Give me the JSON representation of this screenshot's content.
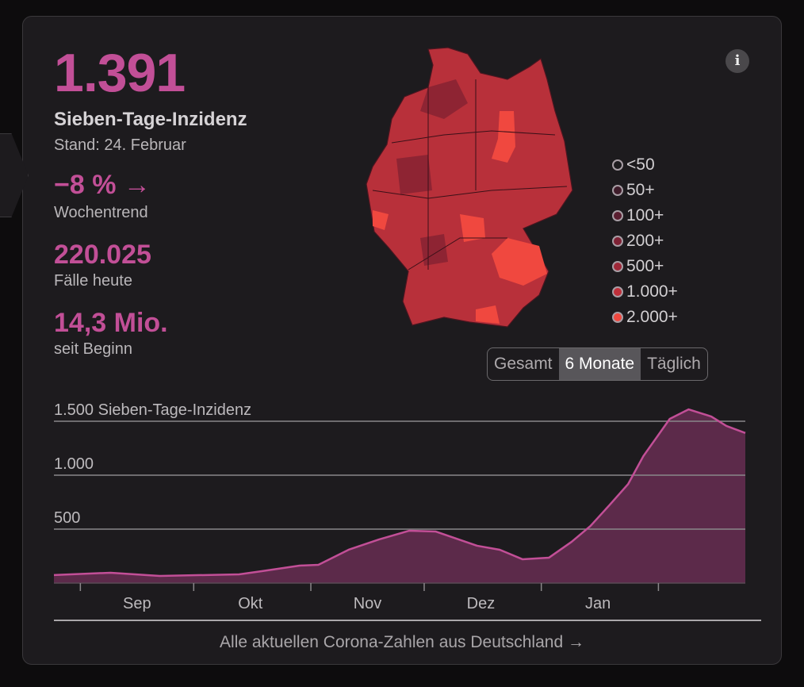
{
  "stats": {
    "incidence": "1.391",
    "incidence_label": "Sieben-Tage-Inzidenz",
    "date": "Stand: 24. Februar",
    "trend_value": "−8 %",
    "trend_arrow": "→",
    "trend_label": "Wochentrend",
    "cases_today": "220.025",
    "cases_today_label": "Fälle heute",
    "cases_total": "14,3 Mio.",
    "cases_total_label": "seit Beginn"
  },
  "info_icon": "i",
  "legend": [
    {
      "label": "<50",
      "color": "#1d1b1e"
    },
    {
      "label": "50+",
      "color": "#3e1c2a"
    },
    {
      "label": "100+",
      "color": "#5a1e30"
    },
    {
      "label": "200+",
      "color": "#7e2235"
    },
    {
      "label": "500+",
      "color": "#9e2838"
    },
    {
      "label": "1.000+",
      "color": "#bf2f3a"
    },
    {
      "label": "2.000+",
      "color": "#f0483f"
    }
  ],
  "toggle": {
    "options": [
      "Gesamt",
      "6 Monate",
      "Täglich"
    ],
    "selected": "6 Monate"
  },
  "footer_link": "Alle aktuellen Corona-Zahlen aus Deutschland →",
  "colors": {
    "accent": "#c24f97",
    "area": "#5c2a4a"
  },
  "chart_data": {
    "type": "area",
    "title": "",
    "ylabel": "Sieben-Tage-Inzidenz",
    "y_ticks": [
      {
        "value": 500,
        "label": "500"
      },
      {
        "value": 1000,
        "label": "1.000"
      },
      {
        "value": 1500,
        "label": "1.500 Sieben-Tage-Inzidenz"
      }
    ],
    "ylim": [
      0,
      1650
    ],
    "xlim": [
      "2021-08-25",
      "2022-02-24"
    ],
    "x_ticks": [
      "2021-09-01",
      "2021-10-01",
      "2021-11-01",
      "2021-12-01",
      "2022-01-01",
      "2022-02-01"
    ],
    "x_labels": [
      {
        "label": "Sep",
        "date": "2021-09-16"
      },
      {
        "label": "Okt",
        "date": "2021-10-16"
      },
      {
        "label": "Nov",
        "date": "2021-11-16"
      },
      {
        "label": "Dez",
        "date": "2021-12-16"
      },
      {
        "label": "Jan",
        "date": "2022-01-16"
      }
    ],
    "x": [
      "2021-08-25",
      "2021-09-09",
      "2021-09-22",
      "2021-10-13",
      "2021-10-19",
      "2021-10-29",
      "2021-11-03",
      "2021-11-11",
      "2021-11-19",
      "2021-11-27",
      "2021-12-04",
      "2021-12-15",
      "2021-12-21",
      "2021-12-27",
      "2022-01-03",
      "2022-01-09",
      "2022-01-14",
      "2022-01-19",
      "2022-01-24",
      "2022-01-28",
      "2022-02-04",
      "2022-02-09",
      "2022-02-15",
      "2022-02-19",
      "2022-02-24"
    ],
    "values": [
      74,
      96,
      66,
      81,
      110,
      162,
      169,
      309,
      404,
      485,
      478,
      346,
      309,
      221,
      235,
      382,
      529,
      721,
      919,
      1176,
      1522,
      1610,
      1544,
      1456,
      1391
    ]
  }
}
